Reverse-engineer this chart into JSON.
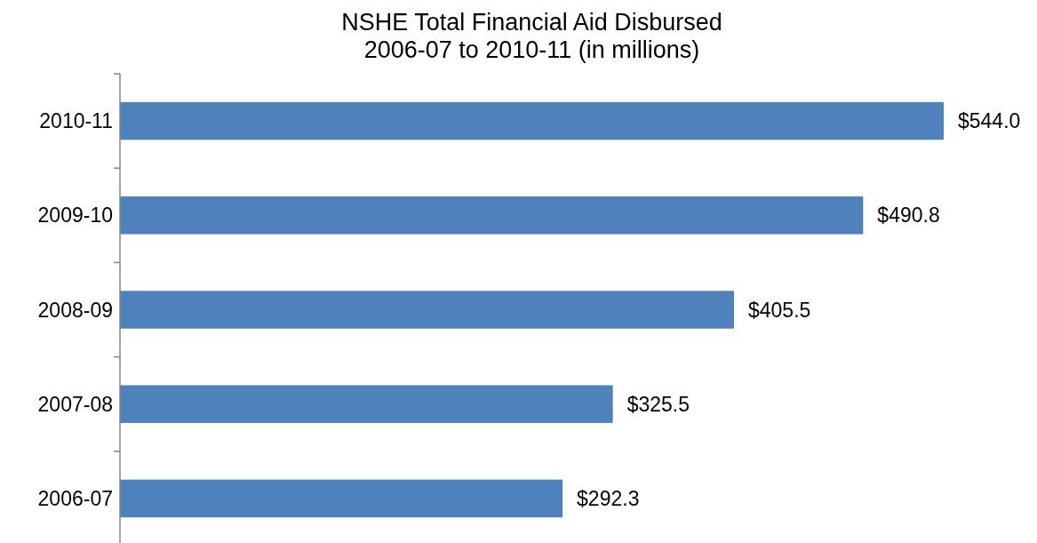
{
  "chart_data": {
    "type": "bar",
    "orientation": "horizontal",
    "title": "NSHE Total Financial Aid Disbursed\n2006-07 to 2010-11 (in millions)",
    "categories": [
      "2010-11",
      "2009-10",
      "2008-09",
      "2007-08",
      "2006-07"
    ],
    "values": [
      544.0,
      490.8,
      405.5,
      325.5,
      292.3
    ],
    "value_labels": [
      "$544.0",
      "$490.8",
      "$405.5",
      "$325.5",
      "$292.3"
    ],
    "color": "#4f81bd"
  }
}
